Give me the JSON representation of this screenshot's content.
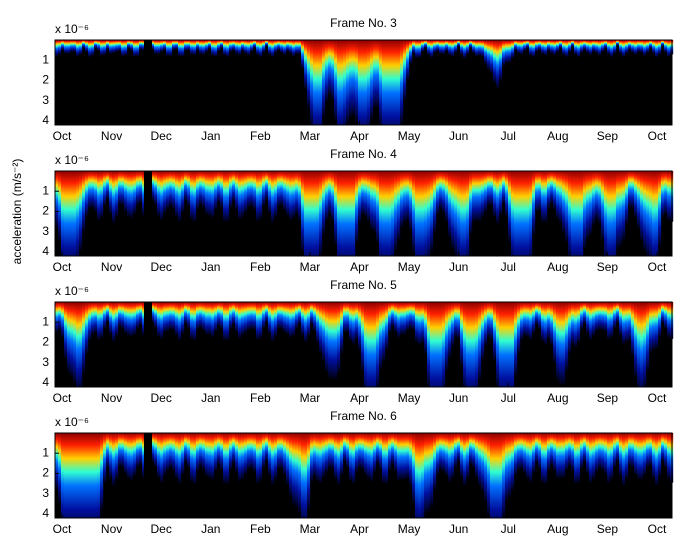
{
  "chart_data": [
    {
      "type": "heatmap",
      "title": "Frame No. 3",
      "y_scale_label": "x 10⁻⁶",
      "colormap": "jet",
      "y_inverted": true,
      "categories": [
        "Oct",
        "Nov",
        "Dec",
        "Jan",
        "Feb",
        "Mar",
        "Apr",
        "May",
        "Jun",
        "Jul",
        "Aug",
        "Sep",
        "Oct"
      ],
      "ylim": [
        0,
        4.2
      ],
      "yticks": [
        1,
        2,
        3,
        4
      ]
    },
    {
      "type": "heatmap",
      "title": "Frame No. 4",
      "y_scale_label": "x 10⁻⁶",
      "colormap": "jet",
      "y_inverted": true,
      "ylabel": "acceleration (m/s⁻²)",
      "categories": [
        "Oct",
        "Nov",
        "Dec",
        "Jan",
        "Feb",
        "Mar",
        "Apr",
        "May",
        "Jun",
        "Jul",
        "Aug",
        "Sep",
        "Oct"
      ],
      "ylim": [
        0,
        4.2
      ],
      "yticks": [
        1,
        2,
        3,
        4
      ]
    },
    {
      "type": "heatmap",
      "title": "Frame No. 5",
      "y_scale_label": "x 10⁻⁶",
      "colormap": "jet",
      "y_inverted": true,
      "categories": [
        "Oct",
        "Nov",
        "Dec",
        "Jan",
        "Feb",
        "Mar",
        "Apr",
        "May",
        "Jun",
        "Jul",
        "Aug",
        "Sep",
        "Oct"
      ],
      "ylim": [
        0,
        4.2
      ],
      "yticks": [
        1,
        2,
        3,
        4
      ]
    },
    {
      "type": "heatmap",
      "title": "Frame No. 6",
      "y_scale_label": "x 10⁻⁶",
      "colormap": "jet",
      "y_inverted": true,
      "categories": [
        "Oct",
        "Nov",
        "Dec",
        "Jan",
        "Feb",
        "Mar",
        "Apr",
        "May",
        "Jun",
        "Jul",
        "Aug",
        "Sep",
        "Oct"
      ],
      "ylim": [
        0,
        4.2
      ],
      "yticks": [
        1,
        2,
        3,
        4
      ]
    }
  ]
}
